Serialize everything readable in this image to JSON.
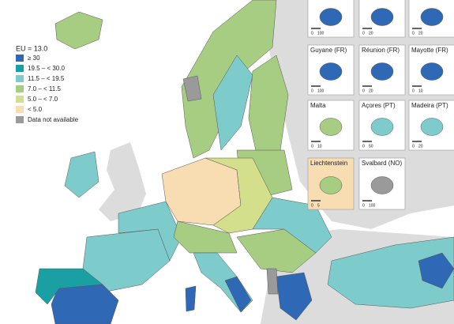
{
  "legend": {
    "title": "EU = 13.0",
    "items": [
      {
        "label": "≥ 30",
        "color": "#2f68b4"
      },
      {
        "label": "19.5 – < 30.0",
        "color": "#1a9fa3"
      },
      {
        "label": "11.5 – < 19.5",
        "color": "#7ecbcc"
      },
      {
        "label": "7.0 – < 11.5",
        "color": "#a6cd82"
      },
      {
        "label": "5.0 – < 7.0",
        "color": "#d4df8c"
      },
      {
        "label": "< 5.0",
        "color": "#f8dcb2"
      },
      {
        "label": "Data not available",
        "color": "#9a9a9a"
      }
    ]
  },
  "insets": [
    {
      "name": null,
      "scale": [
        "0",
        "100"
      ]
    },
    {
      "name": null,
      "scale": [
        "0",
        "20"
      ]
    },
    {
      "name": null,
      "scale": [
        "0",
        "20"
      ]
    },
    {
      "name": "Guyane (FR)",
      "scale": [
        "0",
        "100"
      ]
    },
    {
      "name": "Réunion (FR)",
      "scale": [
        "0",
        "20"
      ]
    },
    {
      "name": "Mayotte (FR)",
      "scale": [
        "0",
        "10"
      ]
    },
    {
      "name": "Malta",
      "scale": [
        "0",
        "10"
      ]
    },
    {
      "name": "Açores (PT)",
      "scale": [
        "0",
        "50"
      ]
    },
    {
      "name": "Madeira (PT)",
      "scale": [
        "0",
        "20"
      ]
    },
    {
      "name": "Liechtenstein",
      "scale": [
        "0",
        "5"
      ]
    },
    {
      "name": "Svalbard (NO)",
      "scale": [
        "0",
        "100"
      ]
    }
  ]
}
